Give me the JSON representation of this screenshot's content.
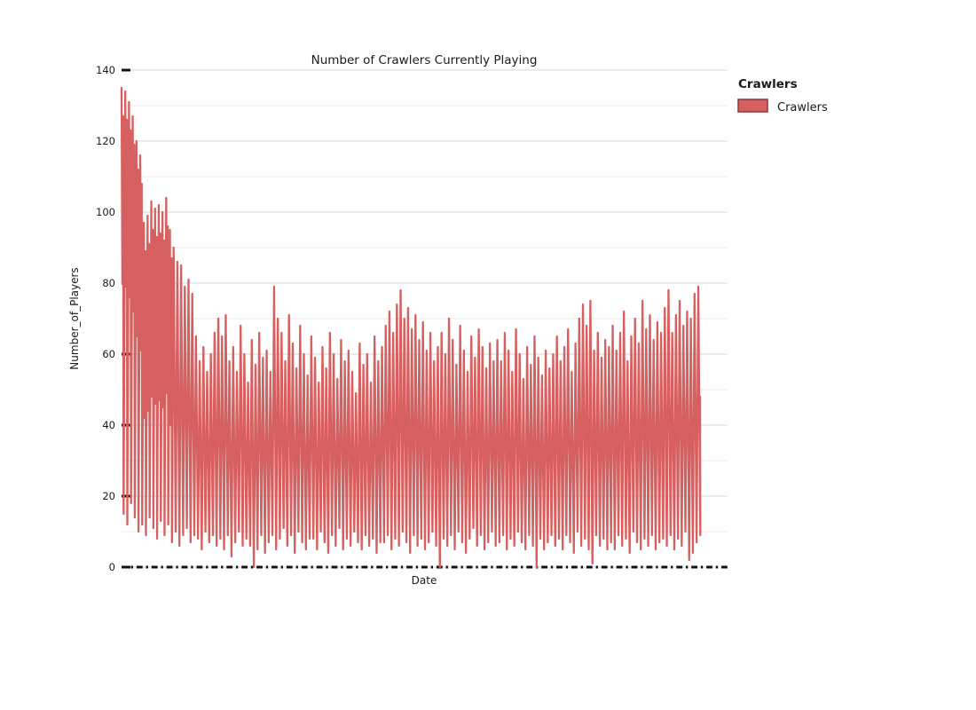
{
  "chart_data": {
    "type": "line",
    "title": "Number of Crawlers Currently Playing",
    "xlabel": "Date",
    "ylabel": "Number_of_Players",
    "ylim": [
      0,
      140
    ],
    "yticks": [
      0,
      20,
      40,
      60,
      80,
      100,
      120,
      140
    ],
    "x_axis": {
      "tick_labels_visible": false,
      "tick_style": "alternating long-dash and dot ticks along baseline"
    },
    "grid": {
      "enabled": true,
      "major_every": 20,
      "minor_every": 10,
      "major_color": "#d7d7d7",
      "minor_color": "#ebebeb"
    },
    "legend": {
      "title": "Crawlers",
      "position": "right-top",
      "items": [
        {
          "label": "Crawlers",
          "swatch_fill": "#d65f5f",
          "swatch_border": "#943634"
        }
      ]
    },
    "series": [
      {
        "name": "Crawlers",
        "color": "#d65f5f",
        "description": "High-frequency player-count series oscillating between daily minima and maxima; values below are the per-cycle max and min envelopes read left-to-right across the Date axis.",
        "cycle_max": [
          135,
          134,
          131,
          127,
          120,
          116,
          97,
          99,
          103,
          101,
          102,
          100,
          104,
          95,
          90,
          86,
          85,
          79,
          81,
          77,
          65,
          58,
          62,
          55,
          60,
          66,
          70,
          65,
          71,
          58,
          62,
          55,
          68,
          60,
          52,
          64,
          57,
          66,
          59,
          61,
          55,
          79,
          70,
          66,
          58,
          71,
          63,
          56,
          68,
          60,
          54,
          65,
          59,
          52,
          62,
          56,
          66,
          60,
          53,
          64,
          58,
          61,
          55,
          49,
          63,
          57,
          60,
          52,
          65,
          58,
          62,
          68,
          72,
          66,
          74,
          78,
          70,
          73,
          67,
          71,
          64,
          69,
          61,
          66,
          58,
          62,
          66,
          60,
          70,
          64,
          57,
          68,
          61,
          55,
          65,
          59,
          67,
          62,
          56,
          63,
          58,
          64,
          58,
          66,
          61,
          55,
          67,
          60,
          53,
          62,
          57,
          65,
          59,
          54,
          61,
          56,
          60,
          65,
          58,
          62,
          67,
          55,
          63,
          70,
          74,
          68,
          75,
          61,
          66,
          59,
          64,
          62,
          68,
          61,
          66,
          72,
          58,
          65,
          70,
          63,
          75,
          67,
          71,
          64,
          69,
          66,
          73,
          78,
          66,
          71,
          75,
          68,
          72,
          70,
          77,
          79
        ],
        "cycle_min": [
          15,
          12,
          18,
          14,
          10,
          12,
          9,
          14,
          11,
          8,
          13,
          9,
          12,
          7,
          10,
          6,
          9,
          11,
          7,
          9,
          8,
          5,
          10,
          7,
          9,
          6,
          8,
          5,
          9,
          3,
          7,
          10,
          6,
          8,
          6,
          0,
          5,
          9,
          4,
          7,
          9,
          5,
          8,
          11,
          6,
          9,
          4,
          10,
          7,
          5,
          8,
          8,
          5,
          10,
          7,
          4,
          9,
          6,
          11,
          5,
          8,
          6,
          10,
          7,
          5,
          9,
          6,
          8,
          4,
          7,
          7,
          9,
          5,
          8,
          6,
          10,
          7,
          4,
          9,
          6,
          8,
          5,
          7,
          10,
          6,
          0,
          8,
          6,
          9,
          5,
          10,
          7,
          4,
          8,
          11,
          6,
          9,
          5,
          7,
          10,
          6,
          7,
          9,
          5,
          8,
          6,
          10,
          7,
          5,
          9,
          6,
          0,
          8,
          5,
          7,
          9,
          6,
          8,
          5,
          9,
          7,
          4,
          10,
          6,
          8,
          5,
          1,
          9,
          6,
          8,
          5,
          7,
          5,
          9,
          6,
          8,
          4,
          10,
          7,
          5,
          8,
          6,
          9,
          5,
          7,
          8,
          6,
          9,
          5,
          8,
          6,
          10,
          2,
          4,
          7,
          9
        ],
        "end_value": 48
      }
    ]
  }
}
